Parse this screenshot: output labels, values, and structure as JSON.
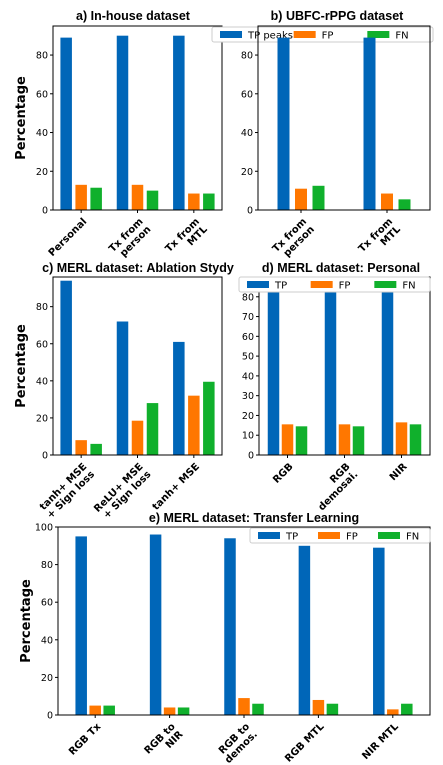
{
  "colors": {
    "TP": "#0066b8",
    "FP": "#ff7700",
    "FN": "#10b02c"
  },
  "chart_data": [
    {
      "id": "a",
      "type": "bar",
      "title": "a) In-house dataset",
      "ylabel": "Percentage",
      "ylim": [
        0,
        95
      ],
      "yticks": [
        0,
        20,
        40,
        60,
        80
      ],
      "categories": [
        "Personal",
        "Tx from\nperson",
        "Tx from\nMTL"
      ],
      "series": [
        {
          "name": "TP peaks",
          "key": "TP",
          "values": [
            89,
            90,
            90
          ]
        },
        {
          "name": "FP",
          "key": "FP",
          "values": [
            13,
            13,
            8.5
          ]
        },
        {
          "name": "FN",
          "key": "FN",
          "values": [
            11.5,
            10,
            8.5
          ]
        }
      ],
      "legend": "top-right"
    },
    {
      "id": "b",
      "type": "bar",
      "title": "b) UBFC-rPPG dataset",
      "ylabel": "",
      "ylim": [
        0,
        95
      ],
      "yticks": [
        0,
        20,
        40,
        60,
        80
      ],
      "categories": [
        "Tx from\nperson",
        "Tx from\nMTL"
      ],
      "series": [
        {
          "name": "TP peaks",
          "key": "TP",
          "values": [
            89,
            89
          ]
        },
        {
          "name": "FP",
          "key": "FP",
          "values": [
            11,
            8.5
          ]
        },
        {
          "name": "FN",
          "key": "FN",
          "values": [
            12.5,
            5.5
          ]
        }
      ],
      "legend": "top-right"
    },
    {
      "id": "c",
      "type": "bar",
      "title": "c) MERL dataset: Ablation Stydy",
      "ylabel": "Percentage",
      "ylim": [
        0,
        96
      ],
      "yticks": [
        0,
        20,
        40,
        60,
        80
      ],
      "categories": [
        "tanh+ MSE\n+ Sign loss",
        "ReLU+ MSE\n+ Sign loss",
        "tanh+ MSE"
      ],
      "series": [
        {
          "name": "TP",
          "key": "TP",
          "values": [
            94,
            72,
            61
          ]
        },
        {
          "name": "FP",
          "key": "FP",
          "values": [
            8,
            18.5,
            32
          ]
        },
        {
          "name": "FN",
          "key": "FN",
          "values": [
            6,
            28,
            39.5
          ]
        }
      ],
      "legend": "none"
    },
    {
      "id": "d",
      "type": "bar",
      "title": "d) MERL dataset: Personal",
      "ylabel": "",
      "ylim": [
        0,
        90
      ],
      "yticks": [
        0,
        10,
        20,
        30,
        40,
        50,
        60,
        70,
        80
      ],
      "categories": [
        "RGB",
        "RGB\ndemosai.",
        "NIR"
      ],
      "series": [
        {
          "name": "TP",
          "key": "TP",
          "values": [
            84,
            84,
            84
          ]
        },
        {
          "name": "FP",
          "key": "FP",
          "values": [
            15.5,
            15.5,
            16.5
          ]
        },
        {
          "name": "FN",
          "key": "FN",
          "values": [
            14.5,
            14.5,
            15.5
          ]
        }
      ],
      "legend": "top-right"
    },
    {
      "id": "e",
      "type": "bar",
      "title": "e) MERL dataset: Transfer Learning",
      "ylabel": "Percentage",
      "ylim": [
        0,
        100
      ],
      "yticks": [
        0,
        20,
        40,
        60,
        80,
        100
      ],
      "categories": [
        "RGB Tx",
        "RGB to\nNIR",
        "RGB to\ndemos.",
        "RGB MTL",
        "NIR MTL"
      ],
      "series": [
        {
          "name": "TP",
          "key": "TP",
          "values": [
            95,
            96,
            94,
            90,
            89
          ]
        },
        {
          "name": "FP",
          "key": "FP",
          "values": [
            5,
            4,
            9,
            8,
            3
          ]
        },
        {
          "name": "FN",
          "key": "FN",
          "values": [
            5,
            4,
            6,
            6,
            6
          ]
        }
      ],
      "legend": "top-right"
    }
  ]
}
